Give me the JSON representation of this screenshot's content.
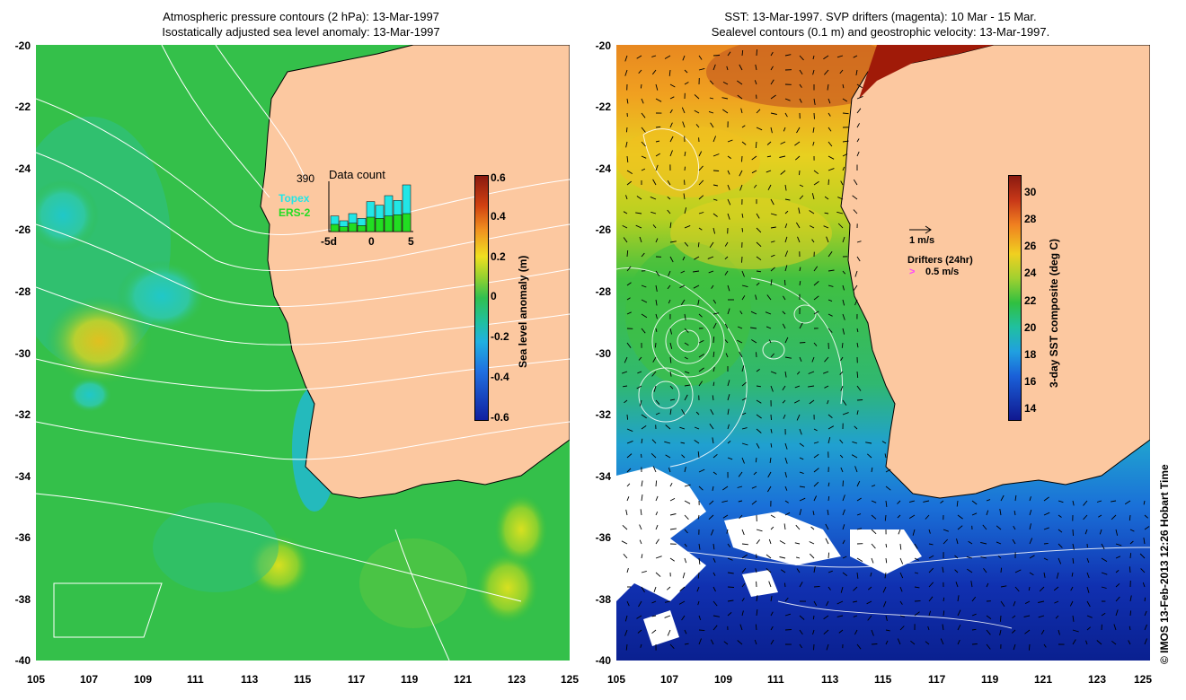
{
  "left_panel": {
    "title_line1": "Atmospheric pressure contours (2 hPa): 13-Mar-1997",
    "title_line2": "Isostatically adjusted sea level anomaly: 13-Mar-1997",
    "y_ticks": [
      "-20",
      "-22",
      "-24",
      "-26",
      "-28",
      "-30",
      "-32",
      "-34",
      "-36",
      "-38",
      "-40"
    ],
    "x_ticks": [
      "105",
      "107",
      "109",
      "111",
      "113",
      "115",
      "117",
      "119",
      "121",
      "123",
      "125"
    ],
    "colorbar": {
      "label": "Sea level anomaly (m)",
      "ticks": [
        "0.6",
        "0.4",
        "0.2",
        "0",
        "-0.2",
        "-0.4",
        "-0.6"
      ],
      "range": [
        -0.6,
        0.6
      ]
    },
    "inset": {
      "title": "Data count",
      "max_label": "390",
      "series": [
        {
          "name": "Topex",
          "color": "#22e6e6"
        },
        {
          "name": "ERS-2",
          "color": "#22dd22"
        }
      ],
      "x_labels": [
        "-5d",
        "0",
        "5"
      ],
      "topex_counts": [
        130,
        90,
        150,
        110,
        250,
        220,
        300,
        260,
        390
      ],
      "ers_counts": [
        60,
        40,
        70,
        50,
        120,
        110,
        130,
        140,
        150
      ]
    }
  },
  "right_panel": {
    "title_line1": "SST: 13-Mar-1997. SVP drifters (magenta): 10 Mar - 15 Mar.",
    "title_line2": "Sealevel contours (0.1 m) and geostrophic velocity: 13-Mar-1997.",
    "y_ticks": [
      "-20",
      "-22",
      "-24",
      "-26",
      "-28",
      "-30",
      "-32",
      "-34",
      "-36",
      "-38",
      "-40"
    ],
    "x_ticks": [
      "105",
      "107",
      "109",
      "111",
      "113",
      "115",
      "117",
      "119",
      "121",
      "123",
      "125"
    ],
    "colorbar": {
      "label": "3-day SST composite (deg C)",
      "ticks": [
        "30",
        "28",
        "26",
        "24",
        "22",
        "20",
        "18",
        "16",
        "14"
      ],
      "range": [
        13,
        31
      ]
    },
    "velocity_key": "1 m/s",
    "drifters_key": "Drifters (24hr)",
    "drifters_speed": "0.5 m/s"
  },
  "credit": "© IMOS 13-Feb-2013 12:26 Hobart Time",
  "colors": {
    "land": "#fcc8a0",
    "ocean_mid": "#2db84a",
    "cold": "#0a2aa8",
    "warm": "#c83010"
  }
}
